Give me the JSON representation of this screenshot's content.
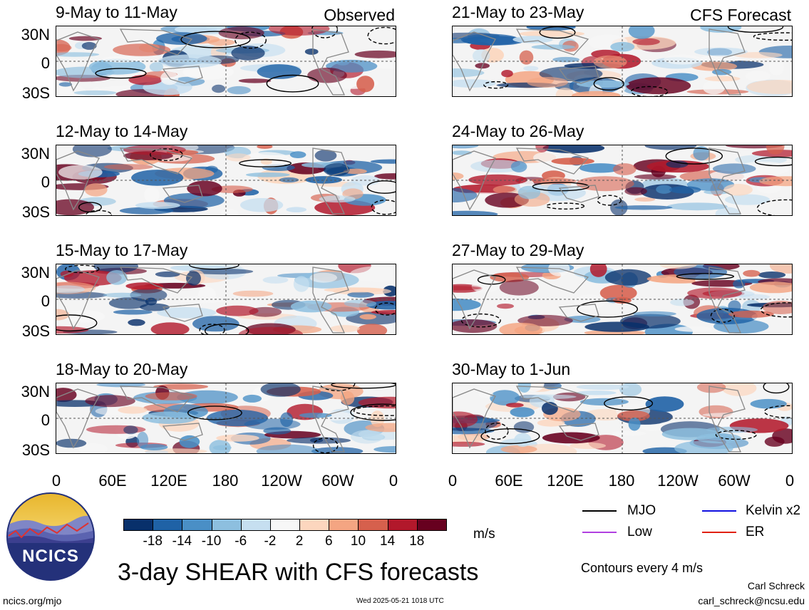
{
  "header": {
    "observed_label": "Observed",
    "forecast_label": "CFS Forecast"
  },
  "panels": [
    {
      "title": "9-May to 11-May",
      "type": "observed"
    },
    {
      "title": "12-May to 14-May",
      "type": "observed"
    },
    {
      "title": "15-May to 17-May",
      "type": "observed"
    },
    {
      "title": "18-May to 20-May",
      "type": "observed"
    },
    {
      "title": "21-May to 23-May",
      "type": "forecast"
    },
    {
      "title": "24-May to 26-May",
      "type": "forecast"
    },
    {
      "title": "27-May to 29-May",
      "type": "forecast"
    },
    {
      "title": "30-May to 1-Jun",
      "type": "forecast"
    }
  ],
  "axes": {
    "lat_labels": [
      "30N",
      "0",
      "30S"
    ],
    "lon_labels": [
      "0",
      "60E",
      "120E",
      "180",
      "120W",
      "60W",
      "0"
    ]
  },
  "colorbar": {
    "unit": "m/s",
    "ticks": [
      "-18",
      "-14",
      "-10",
      "-6",
      "-2",
      "2",
      "6",
      "10",
      "14",
      "18"
    ],
    "colors": [
      "#08306b",
      "#1f62a6",
      "#4a8fc6",
      "#8dbfdf",
      "#c6dff0",
      "#f7f7f7",
      "#fcd6be",
      "#f4a582",
      "#d6604d",
      "#b2182b",
      "#67001f"
    ]
  },
  "legend": {
    "items": [
      {
        "label": "MJO",
        "color": "#000000"
      },
      {
        "label": "Kelvin x2",
        "color": "#1010e0"
      },
      {
        "label": "Low",
        "color": "#b040e0"
      },
      {
        "label": "ER",
        "color": "#e02010"
      }
    ],
    "contours_note": "Contours every 4 m/s"
  },
  "footer": {
    "title": "3-day SHEAR with CFS forecasts",
    "logo_text": "NCICS",
    "url": "ncics.org/mjo",
    "timestamp": "Wed 2025-05-21 1018 UTC",
    "author": "Carl Schreck",
    "email": "carl_schreck@ncsu.edu"
  }
}
